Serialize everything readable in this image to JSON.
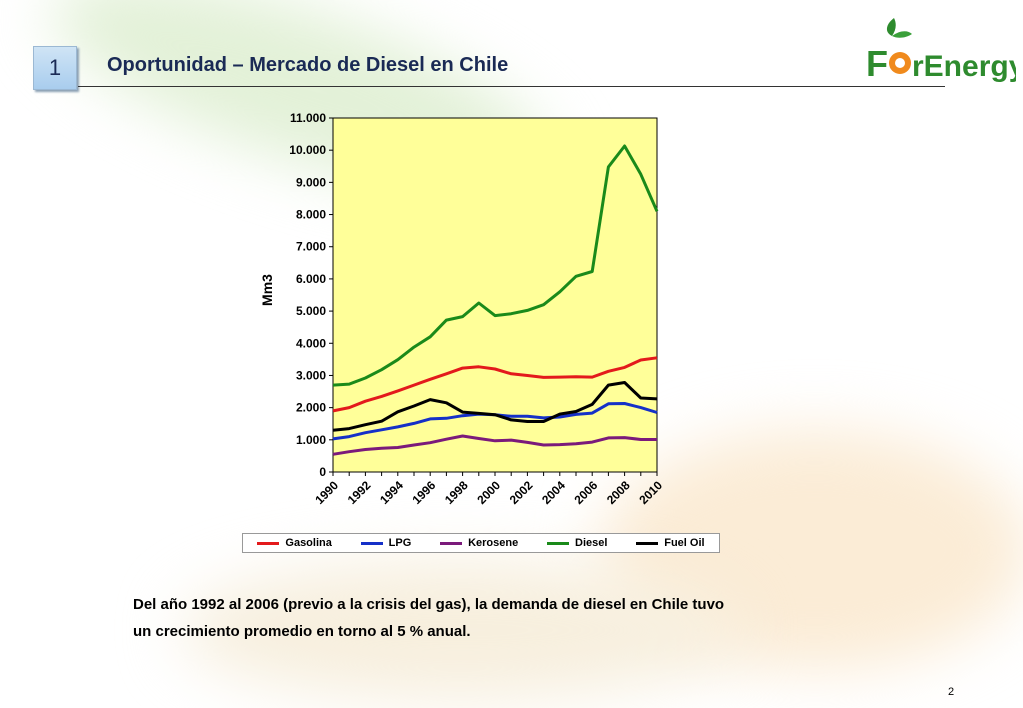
{
  "slide": {
    "number": "1",
    "title": "Oportunidad – Mercado de Diesel en Chile",
    "logo_text": "ForEnergy",
    "caption_line1": "Del año 1992 al 2006 (previo a la crisis del gas), la demanda de diesel en Chile tuvo",
    "caption_line2": "un crecimiento promedio en torno al 5 % anual.",
    "page_number": "2"
  },
  "colors": {
    "title": "#1a2a55",
    "plot_bg": "#ffff99",
    "logo_green": "#2e8b2e",
    "logo_orange": "#f08a1c"
  },
  "chart_data": {
    "type": "line",
    "ylabel": "Mm3",
    "ylim": [
      0,
      11000
    ],
    "yticks": [
      0,
      1000,
      2000,
      3000,
      4000,
      5000,
      6000,
      7000,
      8000,
      9000,
      10000,
      11000
    ],
    "ytick_labels": [
      "0",
      "1.000",
      "2.000",
      "3.000",
      "4.000",
      "5.000",
      "6.000",
      "7.000",
      "8.000",
      "9.000",
      "10.000",
      "11.000"
    ],
    "xlim": [
      1990,
      2010
    ],
    "x_tick_labels": [
      "1990",
      "1992",
      "1994",
      "1996",
      "1998",
      "2000",
      "2002",
      "2004",
      "2006",
      "2008",
      "2010"
    ],
    "x": [
      1990,
      1991,
      1992,
      1993,
      1994,
      1995,
      1996,
      1997,
      1998,
      1999,
      2000,
      2001,
      2002,
      2003,
      2004,
      2005,
      2006,
      2007,
      2008,
      2009,
      2010
    ],
    "grid": false,
    "legend_position": "bottom",
    "series": [
      {
        "name": "Gasolina",
        "color": "#e31a1c",
        "values": [
          1900,
          2000,
          2200,
          2350,
          2520,
          2700,
          2880,
          3050,
          3230,
          3270,
          3200,
          3050,
          3000,
          2940,
          2950,
          2960,
          2950,
          3130,
          3250,
          3480,
          3550
        ]
      },
      {
        "name": "LPG",
        "color": "#1530c8",
        "values": [
          1030,
          1100,
          1220,
          1310,
          1400,
          1510,
          1650,
          1670,
          1750,
          1800,
          1780,
          1730,
          1730,
          1680,
          1710,
          1790,
          1830,
          2120,
          2130,
          2000,
          1850
        ]
      },
      {
        "name": "Kerosene",
        "color": "#7b1a7b",
        "values": [
          550,
          630,
          700,
          740,
          760,
          840,
          910,
          1020,
          1120,
          1040,
          970,
          990,
          920,
          840,
          850,
          880,
          930,
          1060,
          1070,
          1010,
          1010
        ]
      },
      {
        "name": "Diesel",
        "color": "#1a8a1a",
        "values": [
          2700,
          2730,
          2920,
          3180,
          3490,
          3880,
          4200,
          4720,
          4830,
          5250,
          4860,
          4920,
          5020,
          5200,
          5600,
          6080,
          6230,
          9480,
          10130,
          9250,
          8100
        ]
      },
      {
        "name": "Fuel Oil",
        "color": "#000000",
        "values": [
          1300,
          1350,
          1470,
          1580,
          1870,
          2050,
          2250,
          2150,
          1860,
          1820,
          1780,
          1620,
          1570,
          1570,
          1800,
          1880,
          2100,
          2700,
          2780,
          2300,
          2270
        ]
      }
    ]
  }
}
